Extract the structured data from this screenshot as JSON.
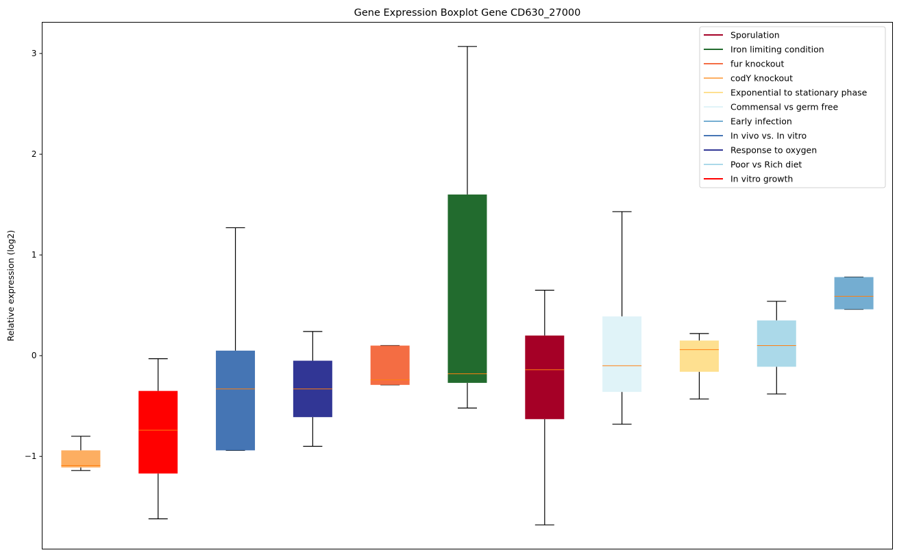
{
  "chart_data": {
    "type": "box",
    "title": "Gene Expression Boxplot Gene CD630_27000",
    "xlabel": "",
    "ylabel": "Relative expression (log2)",
    "ylim": [
      -1.92,
      3.31
    ],
    "yticks": [
      -1,
      0,
      1,
      2,
      3
    ],
    "ytick_labels": [
      "−1",
      "0",
      "1",
      "2",
      "3"
    ],
    "grid": false,
    "legend_placement": "top-right",
    "median_color": "#ff7f0e",
    "boxes": [
      {
        "name": "codY knockout",
        "color": "#fdae61",
        "whisker_low": -1.14,
        "q1": -1.11,
        "median": -1.09,
        "q3": -0.94,
        "whisker_high": -0.8
      },
      {
        "name": "In vitro growth",
        "color": "#ff0000",
        "whisker_low": -1.62,
        "q1": -1.17,
        "median": -0.74,
        "q3": -0.35,
        "whisker_high": -0.03
      },
      {
        "name": "In vivo vs. In vitro",
        "color": "#4575b4",
        "whisker_low": -0.94,
        "q1": -0.94,
        "median": -0.33,
        "q3": 0.05,
        "whisker_high": 1.27
      },
      {
        "name": "Response to oxygen",
        "color": "#313695",
        "whisker_low": -0.9,
        "q1": -0.61,
        "median": -0.33,
        "q3": -0.05,
        "whisker_high": 0.24
      },
      {
        "name": "fur knockout",
        "color": "#f46d43",
        "whisker_low": -0.29,
        "q1": -0.29,
        "median": -0.24,
        "q3": 0.1,
        "whisker_high": 0.1
      },
      {
        "name": "Iron limiting condition",
        "color": "#226b2e",
        "whisker_low": -0.52,
        "q1": -0.27,
        "median": -0.18,
        "q3": 1.6,
        "whisker_high": 3.07
      },
      {
        "name": "Sporulation",
        "color": "#a50026",
        "whisker_low": -1.68,
        "q1": -0.63,
        "median": -0.14,
        "q3": 0.2,
        "whisker_high": 0.65
      },
      {
        "name": "Commensal vs germ free",
        "color": "#e0f3f8",
        "whisker_low": -0.68,
        "q1": -0.36,
        "median": -0.1,
        "q3": 0.39,
        "whisker_high": 1.43
      },
      {
        "name": "Exponential to stationary phase",
        "color": "#fee090",
        "whisker_low": -0.43,
        "q1": -0.16,
        "median": 0.06,
        "q3": 0.15,
        "whisker_high": 0.22
      },
      {
        "name": "Poor vs Rich diet",
        "color": "#abd9e9",
        "whisker_low": -0.38,
        "q1": -0.11,
        "median": 0.1,
        "q3": 0.35,
        "whisker_high": 0.54
      },
      {
        "name": "Early infection",
        "color": "#74add1",
        "whisker_low": 0.46,
        "q1": 0.46,
        "median": 0.59,
        "q3": 0.78,
        "whisker_high": 0.78
      }
    ],
    "legend": [
      {
        "label": "Sporulation",
        "color": "#a50026"
      },
      {
        "label": "Iron limiting condition",
        "color": "#226b2e"
      },
      {
        "label": "fur knockout",
        "color": "#f46d43"
      },
      {
        "label": "codY knockout",
        "color": "#fdae61"
      },
      {
        "label": "Exponential to stationary phase",
        "color": "#fee090"
      },
      {
        "label": "Commensal vs germ free",
        "color": "#e0f3f8"
      },
      {
        "label": "Early infection",
        "color": "#74add1"
      },
      {
        "label": "In vivo vs. In vitro",
        "color": "#4575b4"
      },
      {
        "label": "Response to oxygen",
        "color": "#313695"
      },
      {
        "label": "Poor vs Rich diet",
        "color": "#abd9e9"
      },
      {
        "label": "In vitro growth",
        "color": "#ff0000"
      }
    ]
  }
}
